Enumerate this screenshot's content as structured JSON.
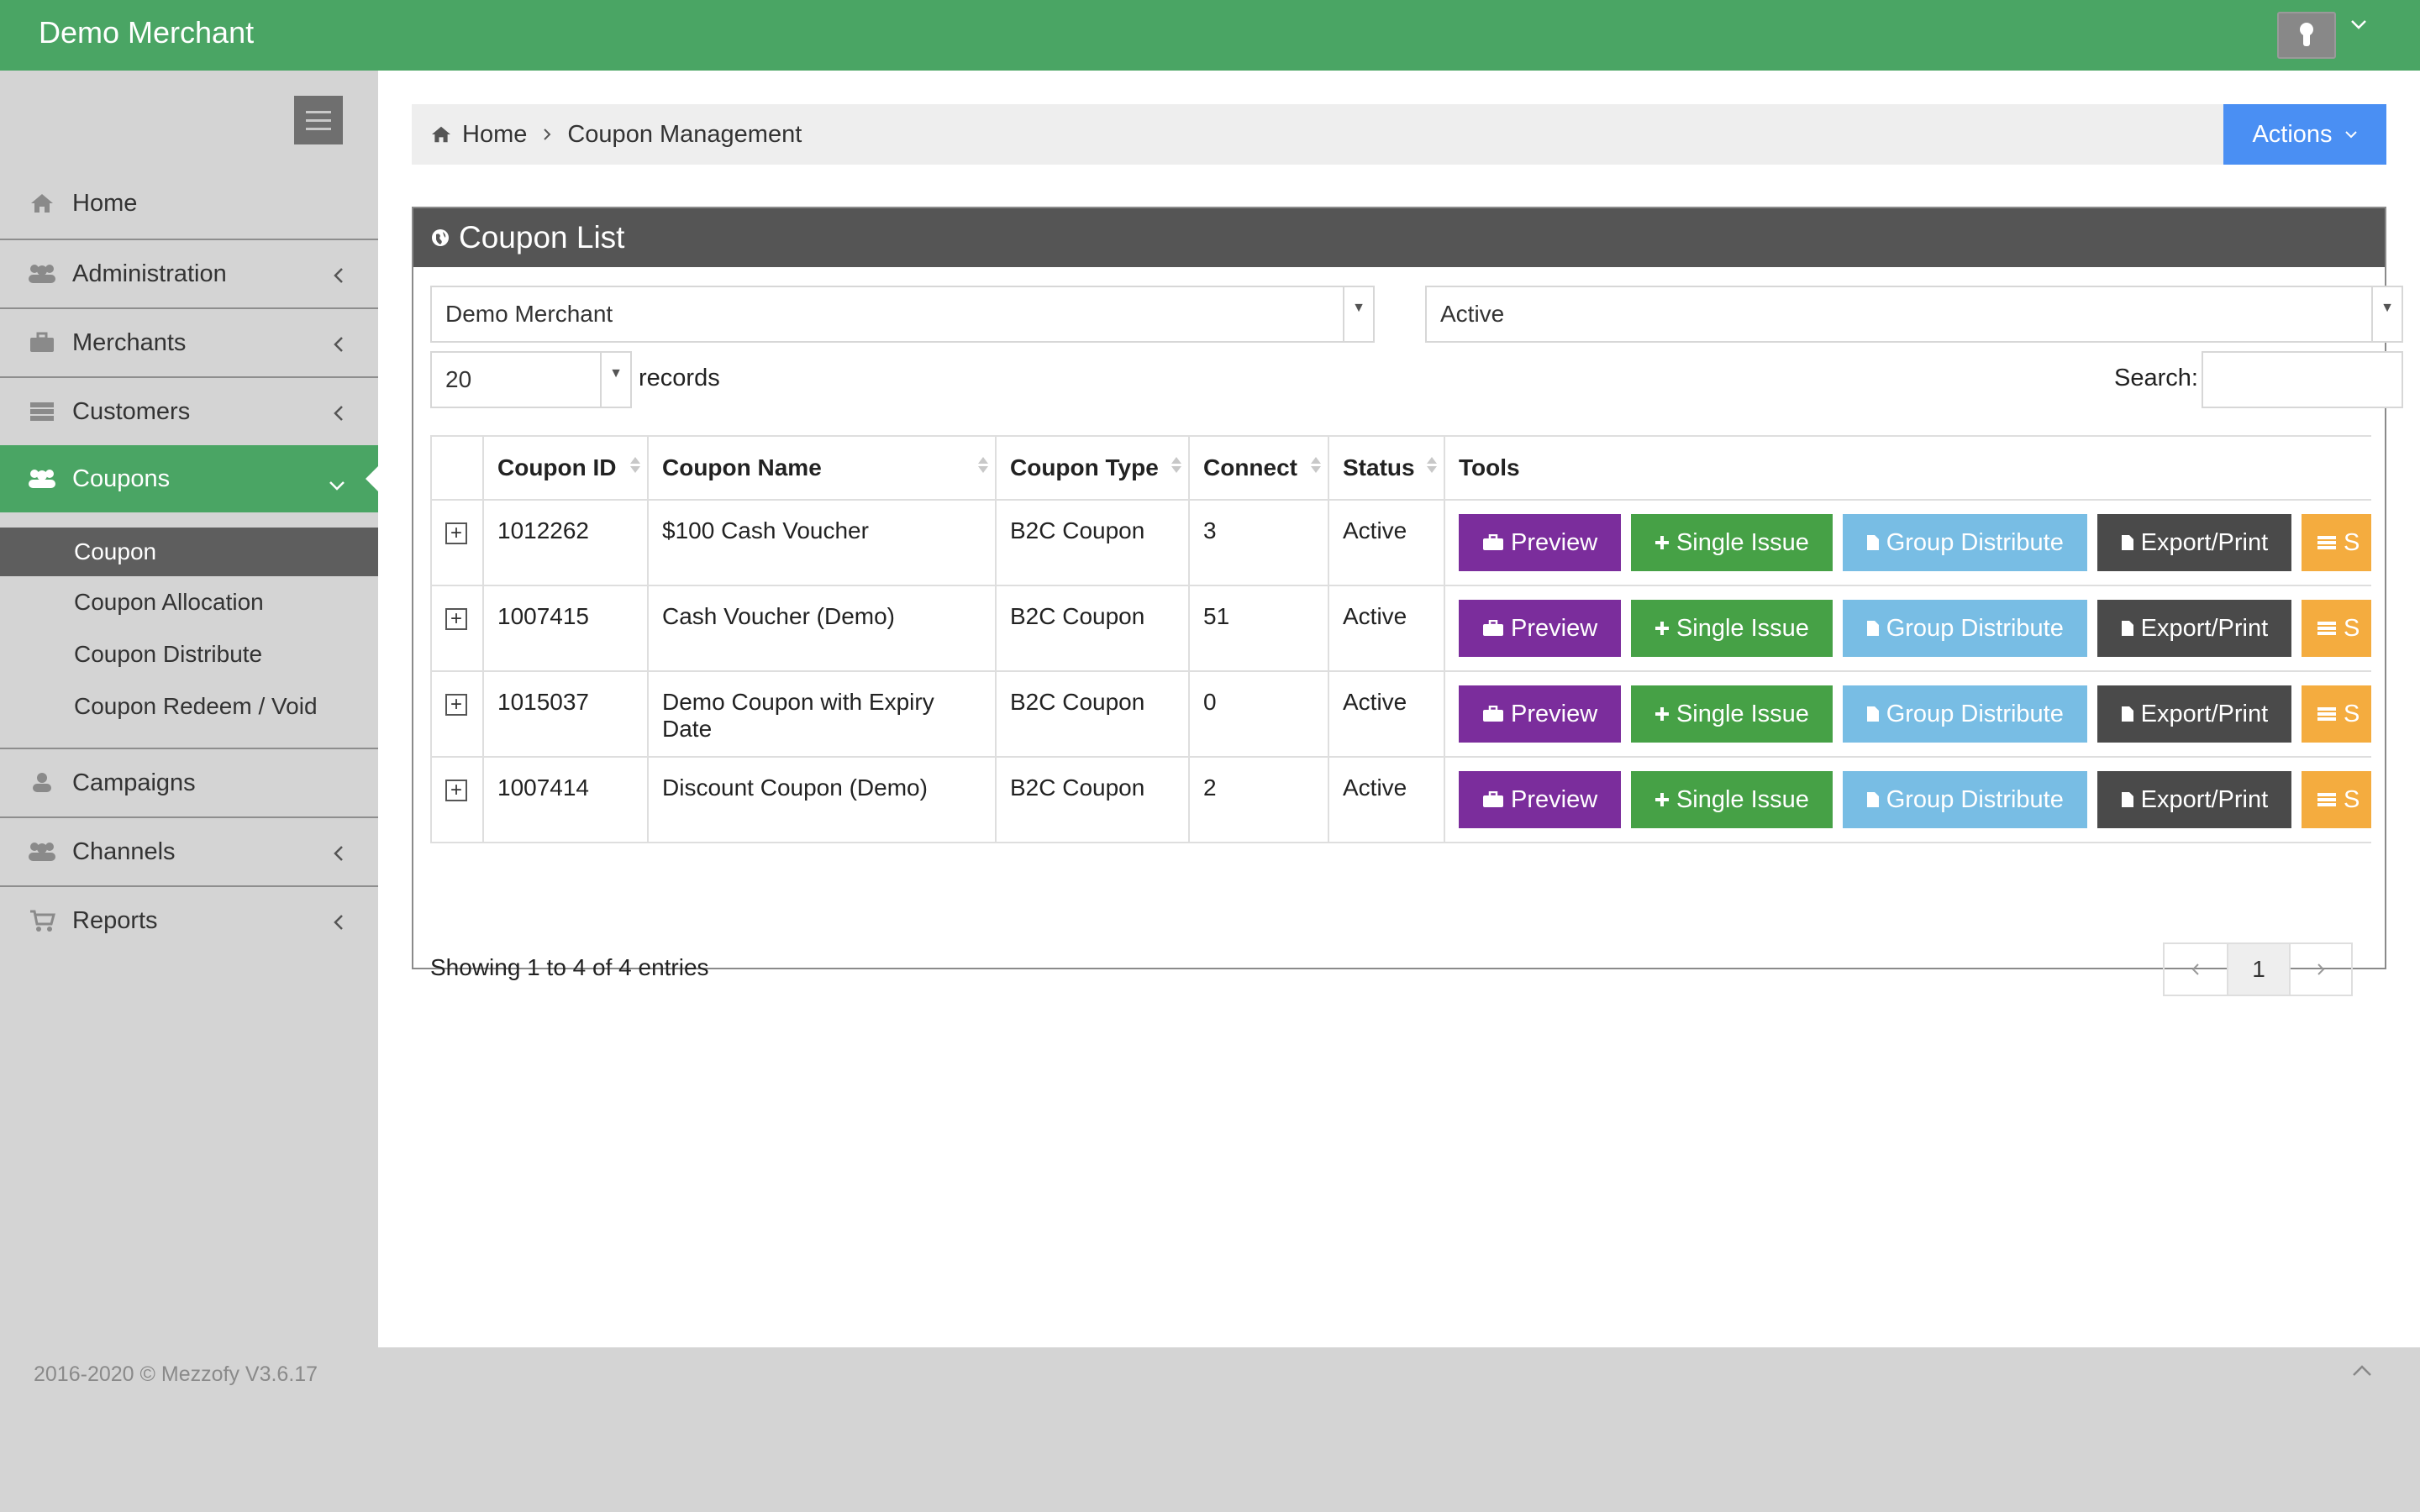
{
  "header": {
    "brand": "Demo Merchant",
    "user_menu_icon": "user-avatar-icon",
    "colors": {
      "header_bg": "#4aa564"
    }
  },
  "sidebar": {
    "items": [
      {
        "label": "Home",
        "icon": "home-icon",
        "has_chevron": false
      },
      {
        "label": "Administration",
        "icon": "users-icon",
        "has_chevron": true
      },
      {
        "label": "Merchants",
        "icon": "briefcase-icon",
        "has_chevron": true
      },
      {
        "label": "Customers",
        "icon": "server-icon",
        "has_chevron": true
      },
      {
        "label": "Coupons",
        "icon": "users-icon",
        "has_chevron": true,
        "active": true
      },
      {
        "label": "Campaigns",
        "icon": "user-icon",
        "has_chevron": false
      },
      {
        "label": "Channels",
        "icon": "users-icon",
        "has_chevron": true
      },
      {
        "label": "Reports",
        "icon": "cart-icon",
        "has_chevron": true
      }
    ],
    "sub_items": [
      {
        "label": "Coupon",
        "current": true
      },
      {
        "label": "Coupon Allocation"
      },
      {
        "label": "Coupon Distribute"
      },
      {
        "label": "Coupon Redeem / Void"
      }
    ]
  },
  "breadcrumb": {
    "home": "Home",
    "current": "Coupon Management"
  },
  "actions_button": "Actions",
  "panel": {
    "title": "Coupon List",
    "merchant_select": "Demo Merchant",
    "status_select": "Active",
    "page_length": "20",
    "records_label": "records",
    "search_label": "Search:",
    "search_value": ""
  },
  "table": {
    "headers": [
      "",
      "Coupon ID",
      "Coupon Name",
      "Coupon Type",
      "Connect",
      "Status",
      "Tools"
    ],
    "rows": [
      {
        "id": "1012262",
        "name": "$100 Cash Voucher",
        "type": "B2C Coupon",
        "connect": "3",
        "status": "Active"
      },
      {
        "id": "1007415",
        "name": "Cash Voucher (Demo)",
        "type": "B2C Coupon",
        "connect": "51",
        "status": "Active"
      },
      {
        "id": "1015037",
        "name": "Demo Coupon with Expiry Date",
        "type": "B2C Coupon",
        "connect": "0",
        "status": "Active"
      },
      {
        "id": "1007414",
        "name": "Discount Coupon (Demo)",
        "type": "B2C Coupon",
        "connect": "2",
        "status": "Active"
      }
    ],
    "tools": {
      "preview": "Preview",
      "single_issue": "Single Issue",
      "group_distribute": "Group Distribute",
      "export_print": "Export/Print",
      "more": "S"
    },
    "tool_colors": {
      "preview": "#7b2d9c",
      "single_issue": "#46a146",
      "group_distribute": "#78bde4",
      "export_print": "#4a4a4a",
      "more": "#f4ac3f"
    }
  },
  "pagination": {
    "showing": "Showing 1 to 4 of 4 entries",
    "current_page": "1"
  },
  "footer": {
    "text": "2016-2020 © Mezzofy V3.6.17"
  }
}
